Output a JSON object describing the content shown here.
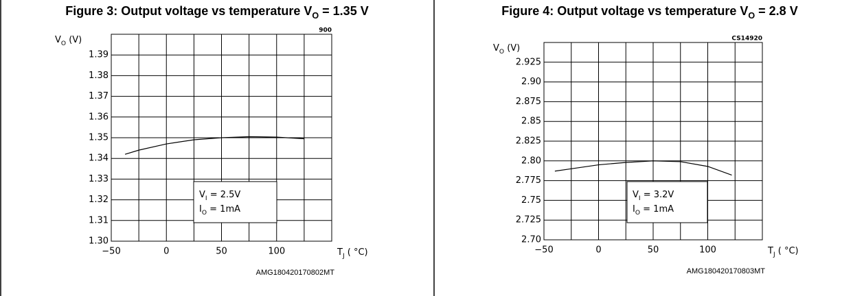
{
  "chart_data": [
    {
      "type": "line",
      "title": {
        "main": "Figure 3: Output voltage vs temperature V",
        "sub": "O",
        "rest": " = 1.35 V"
      },
      "y_label": {
        "main": "V",
        "sub": "O",
        "rest": " (V)"
      },
      "x_label": {
        "main": "T",
        "sub": "J",
        "rest": " ( °C)"
      },
      "code": "900",
      "footer": "AMG180420170802MT",
      "annotations": [
        {
          "main": "V",
          "sub": "I",
          "rest": " = 2.5V"
        },
        {
          "main": "I",
          "sub": "O",
          "rest": " = 1mA"
        }
      ],
      "xlim": [
        -50,
        150
      ],
      "xticks": [
        {
          "value": -50,
          "label": "−50"
        },
        0,
        50,
        100
      ],
      "xgrid": [
        -50,
        -25,
        0,
        25,
        50,
        75,
        100,
        125,
        150
      ],
      "ylim": [
        1.3,
        1.4
      ],
      "yticks": [
        {
          "value": 1.3,
          "label": "1.30"
        },
        1.31,
        1.32,
        1.33,
        1.34,
        1.35,
        1.36,
        1.37,
        1.38,
        1.39
      ],
      "grid": true,
      "series": [
        {
          "color": "#000000",
          "x": [
            -37.5,
            -25,
            0,
            25,
            50,
            75,
            100,
            125
          ],
          "values": [
            1.342,
            1.344,
            1.347,
            1.349,
            1.35,
            1.3505,
            1.3503,
            1.3495
          ]
        }
      ]
    },
    {
      "type": "line",
      "title": {
        "main": "Figure 4: Output voltage vs temperature V",
        "sub": "O",
        "rest": " = 2.8 V"
      },
      "y_label": {
        "main": "V",
        "sub": "O",
        "rest": " (V)"
      },
      "x_label": {
        "main": "T",
        "sub": "J",
        "rest": " ( °C)"
      },
      "code": "CS14920",
      "footer": "AMG180420170803MT",
      "annotations": [
        {
          "main": "V",
          "sub": "I",
          "rest": " = 3.2V"
        },
        {
          "main": "I",
          "sub": "O",
          "rest": " = 1mA"
        }
      ],
      "xlim": [
        -50,
        150
      ],
      "xticks": [
        {
          "value": -50,
          "label": "−50"
        },
        0,
        50,
        100
      ],
      "xgrid": [
        -50,
        -25,
        0,
        25,
        50,
        75,
        100,
        125,
        150
      ],
      "ylim": [
        2.7,
        2.95
      ],
      "yticks": [
        {
          "value": 2.7,
          "label": "2.70"
        },
        2.725,
        {
          "value": 2.75,
          "label": "2.75"
        },
        2.775,
        {
          "value": 2.8,
          "label": "2.80"
        },
        2.825,
        {
          "value": 2.85,
          "label": "2.85"
        },
        2.875,
        {
          "value": 2.9,
          "label": "2.90"
        },
        2.925
      ],
      "grid": true,
      "series": [
        {
          "color": "#000000",
          "x": [
            -40,
            -25,
            0,
            25,
            50,
            75,
            100,
            122
          ],
          "values": [
            2.787,
            2.79,
            2.795,
            2.798,
            2.8,
            2.799,
            2.793,
            2.782
          ]
        }
      ]
    }
  ]
}
